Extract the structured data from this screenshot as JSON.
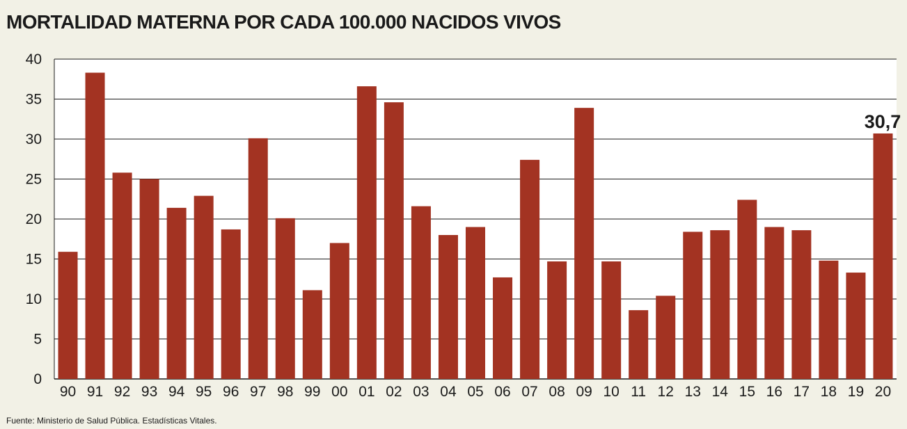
{
  "title": "MORTALIDAD MATERNA POR CADA 100.000 NACIDOS VIVOS",
  "source": "Fuente: Ministerio de Salud Pública. Estadísticas Vitales.",
  "colors": {
    "bar": "#a33322",
    "background": "#f2f1e6",
    "plot_background": "#ffffff",
    "grid": "#1a1a1a",
    "text": "#1a1a1a"
  },
  "chart_data": {
    "type": "bar",
    "title": "MORTALIDAD MATERNA POR CADA 100.000 NACIDOS VIVOS",
    "xlabel": "",
    "ylabel": "",
    "ylim": [
      0,
      40
    ],
    "yticks": [
      "0",
      "5",
      "10",
      "15",
      "20",
      "25",
      "30",
      "35",
      "40"
    ],
    "grid": true,
    "legend": "none",
    "categories": [
      "90",
      "91",
      "92",
      "93",
      "94",
      "95",
      "96",
      "97",
      "98",
      "99",
      "00",
      "01",
      "02",
      "03",
      "04",
      "05",
      "06",
      "07",
      "08",
      "09",
      "10",
      "11",
      "12",
      "13",
      "14",
      "15",
      "16",
      "17",
      "18",
      "19",
      "20"
    ],
    "values": [
      15.9,
      38.3,
      25.8,
      25.0,
      21.4,
      22.9,
      18.7,
      30.1,
      20.1,
      11.1,
      17.0,
      36.6,
      34.6,
      21.6,
      18.0,
      19.0,
      12.7,
      27.4,
      14.7,
      33.9,
      14.7,
      8.6,
      10.4,
      18.4,
      18.6,
      22.4,
      19.0,
      18.6,
      14.8,
      13.3,
      30.7
    ],
    "annotations": [
      {
        "category": "20",
        "text": "30,7"
      }
    ]
  }
}
